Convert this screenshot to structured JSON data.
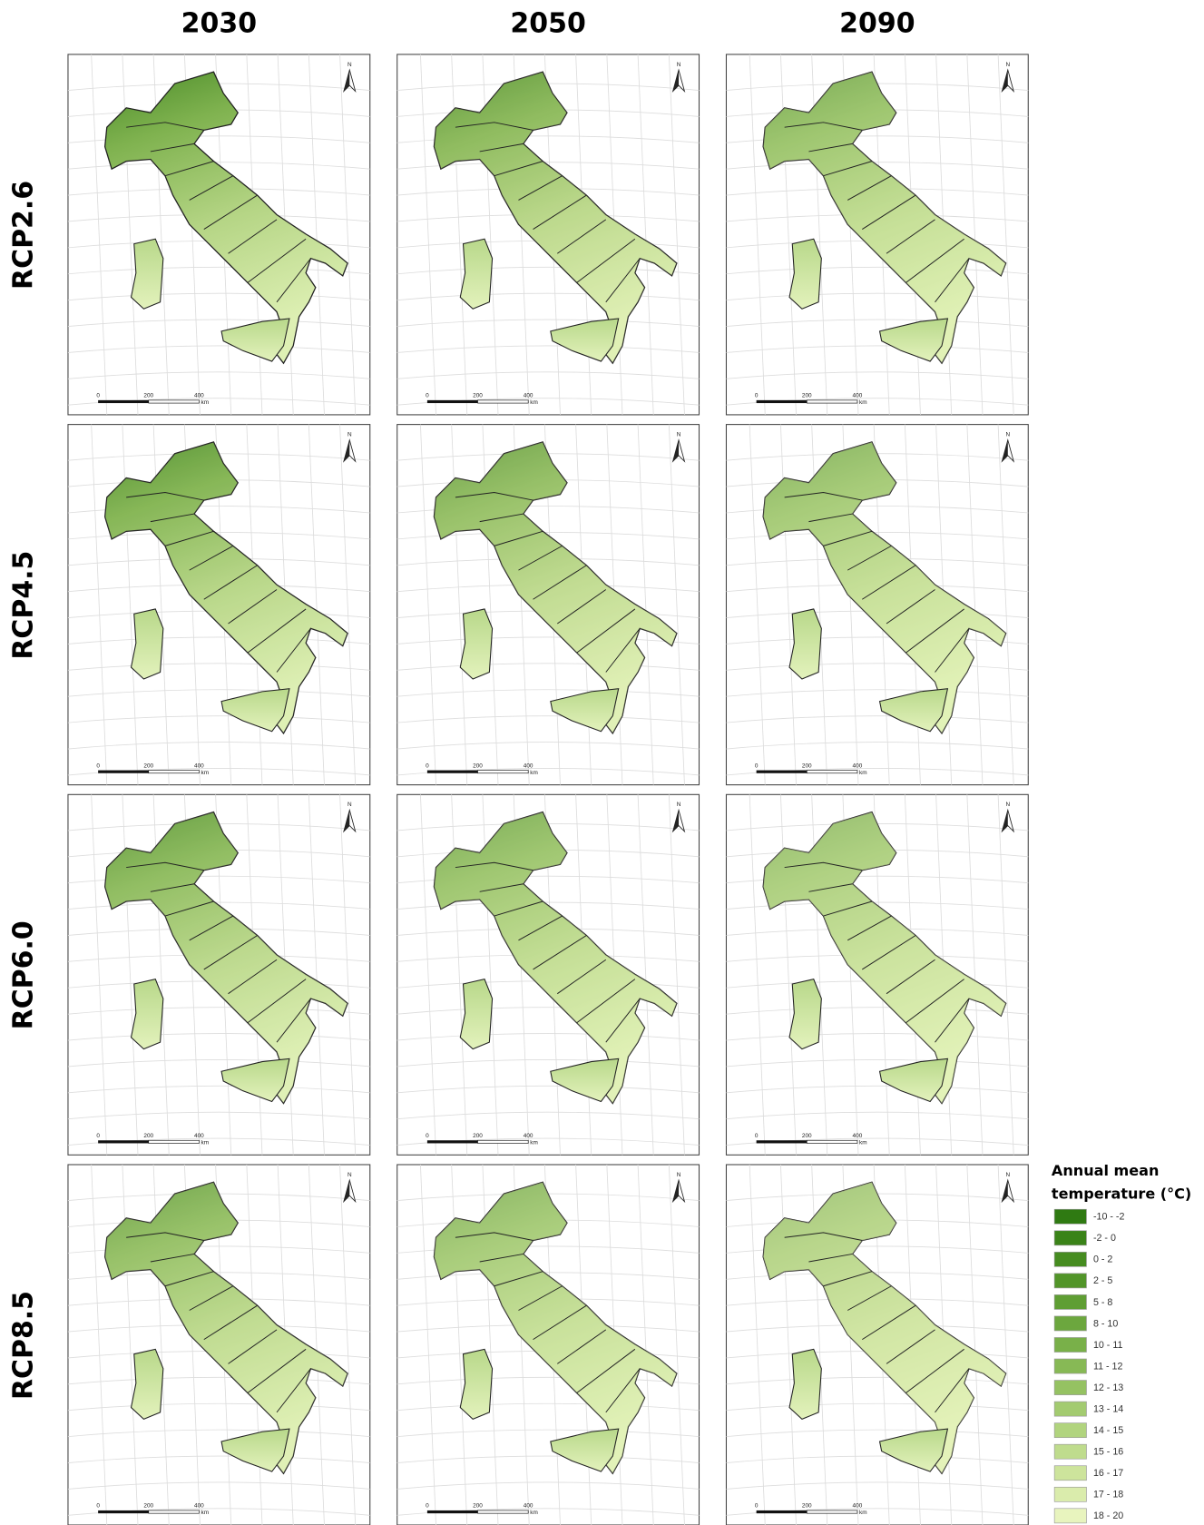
{
  "columns": [
    "2030",
    "2050",
    "2090"
  ],
  "rows": [
    "RCP2.6",
    "RCP4.5",
    "RCP6.0",
    "RCP8.5"
  ],
  "panel": {
    "north_label": "N",
    "scale_labels": [
      "0",
      "200",
      "400"
    ],
    "scale_unit": "km"
  },
  "legend": {
    "title_lines": [
      "Annual mean",
      "temperature (°C)"
    ],
    "items": [
      {
        "label": "-10 - -2",
        "color": "#2f7a12"
      },
      {
        "label": "-2 - 0",
        "color": "#3a8318"
      },
      {
        "label": "0 - 2",
        "color": "#468c20"
      },
      {
        "label": "2 - 5",
        "color": "#529529"
      },
      {
        "label": "5 - 8",
        "color": "#5f9e33"
      },
      {
        "label": "8 - 10",
        "color": "#6ca73e"
      },
      {
        "label": "10 - 11",
        "color": "#79b049"
      },
      {
        "label": "11 - 12",
        "color": "#87b955"
      },
      {
        "label": "12 - 13",
        "color": "#95c262"
      },
      {
        "label": "13 - 14",
        "color": "#a3cb70"
      },
      {
        "label": "14 - 15",
        "color": "#b1d47e"
      },
      {
        "label": "15 - 16",
        "color": "#bfdc8d"
      },
      {
        "label": "16 - 17",
        "color": "#cde49c"
      },
      {
        "label": "17 - 18",
        "color": "#daecac"
      },
      {
        "label": "18 - 20",
        "color": "#e8f4be"
      }
    ]
  }
}
